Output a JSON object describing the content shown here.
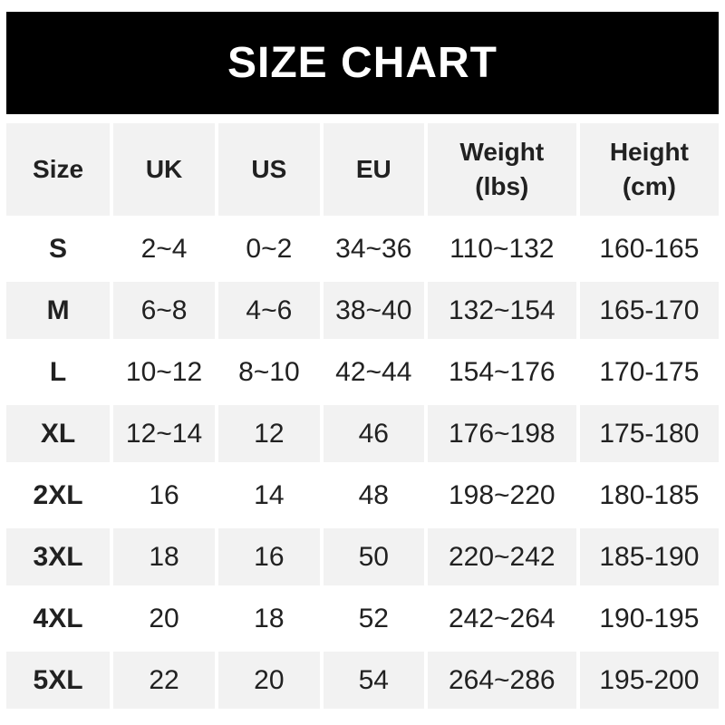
{
  "banner": {
    "title": "SIZE CHART"
  },
  "colors": {
    "banner_bg": "#000000",
    "banner_text": "#ffffff",
    "row_alt_bg": "#f2f2f2",
    "row_bg": "#ffffff",
    "text": "#212121",
    "page_bg": "#ffffff"
  },
  "chart_data": {
    "type": "table",
    "title": "SIZE CHART",
    "columns": [
      {
        "label": "Size"
      },
      {
        "label": "UK"
      },
      {
        "label": "US"
      },
      {
        "label": "EU"
      },
      {
        "label": "Weight",
        "sub": "(lbs)"
      },
      {
        "label": "Height",
        "sub": "(cm)"
      }
    ],
    "rows": [
      [
        "S",
        "2~4",
        "0~2",
        "34~36",
        "110~132",
        "160-165"
      ],
      [
        "M",
        "6~8",
        "4~6",
        "38~40",
        "132~154",
        "165-170"
      ],
      [
        "L",
        "10~12",
        "8~10",
        "42~44",
        "154~176",
        "170-175"
      ],
      [
        "XL",
        "12~14",
        "12",
        "46",
        "176~198",
        "175-180"
      ],
      [
        "2XL",
        "16",
        "14",
        "48",
        "198~220",
        "180-185"
      ],
      [
        "3XL",
        "18",
        "16",
        "50",
        "220~242",
        "185-190"
      ],
      [
        "4XL",
        "20",
        "18",
        "52",
        "242~264",
        "190-195"
      ],
      [
        "5XL",
        "22",
        "20",
        "54",
        "264~286",
        "195-200"
      ]
    ]
  }
}
